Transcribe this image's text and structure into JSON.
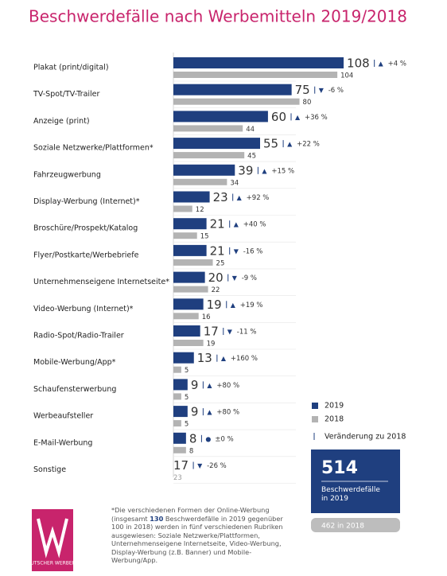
{
  "chart_data": {
    "type": "bar",
    "title": "Beschwerdefälle nach Werbemitteln 2019/2018",
    "categories": [
      "Plakat (print/digital)",
      "TV-Spot/TV-Trailer",
      "Anzeige (print)",
      "Soziale Netzwerke/Plattformen*",
      "Fahrzeugwerbung",
      "Display-Werbung (Internet)*",
      "Broschüre/Prospekt/Katalog",
      "Flyer/Postkarte/Werbebriefe",
      "Unternehmenseigene Internetseite*",
      "Video-Werbung (Internet)*",
      "Radio-Spot/Radio-Trailer",
      "Mobile-Werbung/App*",
      "Schaufensterwerbung",
      "Werbeaufsteller",
      "E-Mail-Werbung",
      "Sonstige"
    ],
    "series": [
      {
        "name": "2019",
        "color": "#1f3f7f",
        "values": [
          108,
          75,
          60,
          55,
          39,
          23,
          21,
          21,
          20,
          19,
          17,
          13,
          9,
          9,
          8,
          17
        ]
      },
      {
        "name": "2018",
        "color": "#b3b3b3",
        "values": [
          104,
          80,
          44,
          45,
          34,
          12,
          15,
          25,
          22,
          16,
          19,
          5,
          5,
          5,
          8,
          23
        ]
      }
    ],
    "change_icons": [
      "▲",
      "▼",
      "▲",
      "▲",
      "▲",
      "▲",
      "▲",
      "▼",
      "▼",
      "▲",
      "▼",
      "▲",
      "▲",
      "▲",
      "●",
      "▼"
    ],
    "change_labels": [
      "+4 %",
      "-6 %",
      "+36 %",
      "+22 %",
      "+15 %",
      "+92 %",
      "+40 %",
      "-16 %",
      "-9 %",
      "+19 %",
      "-11 %",
      "+160 %",
      "+80 %",
      "+80 %",
      "±0 %",
      "-26 %"
    ],
    "change_legend": "Veränderung zu 2018",
    "xlim": [
      0,
      110
    ],
    "summary": {
      "total": "514",
      "total_label": "Beschwerdefälle in 2019",
      "previous": "462 in 2018"
    },
    "footnote": [
      "*Die verschiedenen Formen der Online-Werbung (insgesamt ",
      "130",
      " Beschwerdefälle in 2019 gegenüber 100 in 2018) werden in fünf verschiedenen Rubriken ausgewiesen: Soziale Netzwerke/Plattformen, Unternehmenseigene Internetseite, Video-Werbung, Display-Werbung (z.B. Banner) und Mobile-Werbung/App."
    ],
    "logo": "DEUTSCHER WERBERAT"
  }
}
